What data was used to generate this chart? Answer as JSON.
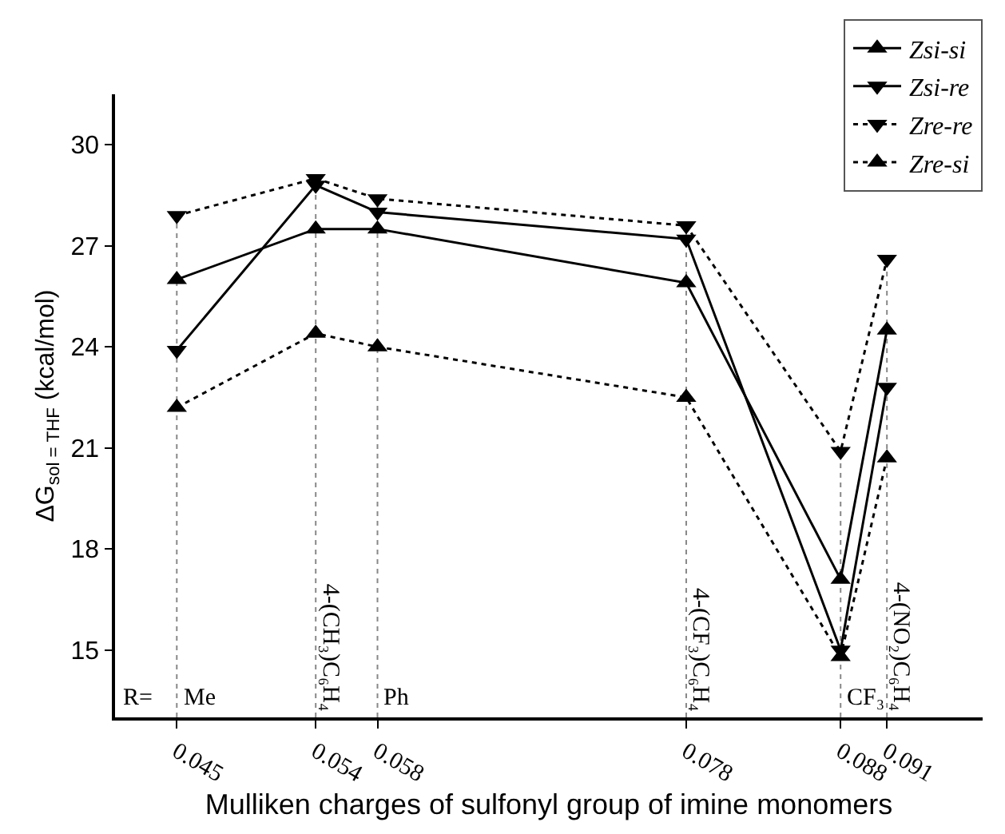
{
  "chart_data": {
    "type": "line",
    "xlabel": "Mulliken charges of sulfonyl group of imine monomers",
    "ylabel": "ΔG$_{sol = THF}$ (kcal/mol)",
    "x": [
      0.045,
      0.054,
      0.058,
      0.078,
      0.088,
      0.091
    ],
    "xlim": [
      0.041,
      0.0972
    ],
    "xticks": [
      0.045,
      0.054,
      0.058,
      0.078,
      0.088,
      0.091
    ],
    "ylim": [
      13,
      31.5
    ],
    "yticks": [
      15,
      18,
      21,
      24,
      27,
      30
    ],
    "grid": false,
    "legend": "top right",
    "series": [
      {
        "name": "Zsi-si",
        "color": "#000000",
        "marker": "triangle",
        "line_style": "solid",
        "values": [
          26.0,
          27.5,
          27.5,
          25.9,
          17.1,
          24.5
        ]
      },
      {
        "name": "Zsi-re",
        "color": "#000000",
        "marker": "triangle-down",
        "line_style": "solid",
        "values": [
          23.9,
          28.8,
          28.0,
          27.2,
          15.0,
          22.8
        ]
      },
      {
        "name": "Zre-re",
        "color": "#000000",
        "marker": "triangle-down",
        "line_style": "dotted",
        "values": [
          27.9,
          29.0,
          28.4,
          27.6,
          20.9,
          26.6
        ]
      },
      {
        "name": "Zre-si",
        "color": "#000000",
        "marker": "triangle",
        "line_style": "dotted",
        "values": [
          22.2,
          24.4,
          24.0,
          22.5,
          14.8,
          20.7
        ]
      }
    ],
    "ref_lines": [
      {
        "axis": "x",
        "value": 0.045,
        "label": "Me",
        "color": "#888888",
        "line_style": "dotted"
      },
      {
        "axis": "x",
        "value": 0.054,
        "label": "4-(CH₃)C₆H₄",
        "color": "#888888",
        "line_style": "dotted"
      },
      {
        "axis": "x",
        "value": 0.058,
        "label": "Ph",
        "color": "#888888",
        "line_style": "dotted"
      },
      {
        "axis": "x",
        "value": 0.078,
        "label": "4-(CF₃)C₆H₄",
        "color": "#888888",
        "line_style": "dotted"
      },
      {
        "axis": "x",
        "value": 0.088,
        "label": "CF₃",
        "color": "#888888",
        "line_style": "dotted"
      },
      {
        "axis": "x",
        "value": 0.091,
        "label": "4-(NO₂)C₆H₄",
        "color": "#888888",
        "line_style": "dotted"
      }
    ],
    "annotations": [
      "R="
    ]
  }
}
